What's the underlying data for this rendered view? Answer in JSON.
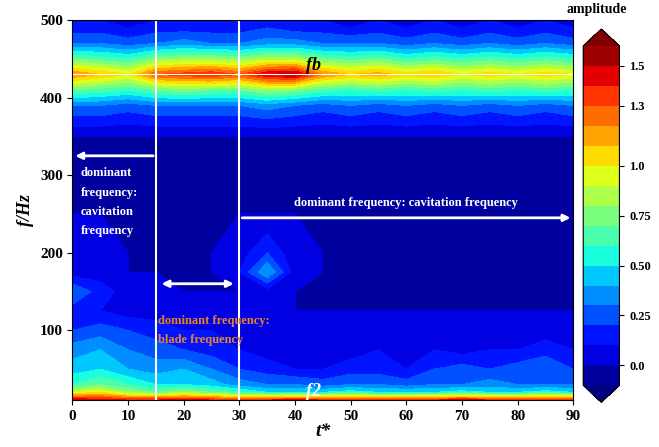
{
  "chart_data": {
    "type": "contour",
    "xlabel": "t*",
    "ylabel": "f/Hz",
    "xlim": [
      0,
      90
    ],
    "ylim": [
      10,
      500
    ],
    "xticks": [
      0,
      10,
      20,
      30,
      40,
      50,
      60,
      70,
      80,
      90
    ],
    "yticks": [
      100,
      200,
      300,
      400,
      500
    ],
    "x": [
      0,
      5,
      10,
      15,
      20,
      25,
      30,
      35,
      40,
      45,
      50,
      55,
      60,
      65,
      70,
      75,
      80,
      85,
      90
    ],
    "y": [
      10,
      20,
      30,
      50,
      75,
      100,
      125,
      150,
      175,
      200,
      250,
      300,
      350,
      390,
      410,
      430,
      450,
      470,
      490,
      500
    ],
    "cells": [
      [
        1.5,
        1.45,
        1.4,
        1.4,
        1.45,
        1.4,
        1.35,
        1.4,
        1.45,
        1.4,
        1.4,
        1.35,
        1.4,
        1.4,
        1.45,
        1.4,
        1.4,
        1.35,
        1.4
      ],
      [
        0.9,
        1.0,
        0.8,
        0.7,
        0.8,
        0.7,
        0.6,
        0.5,
        0.5,
        0.5,
        0.55,
        0.5,
        0.5,
        0.5,
        0.55,
        0.5,
        0.5,
        0.55,
        0.5
      ],
      [
        0.6,
        0.7,
        0.6,
        0.5,
        0.5,
        0.45,
        0.35,
        0.3,
        0.3,
        0.25,
        0.3,
        0.3,
        0.25,
        0.3,
        0.3,
        0.35,
        0.3,
        0.3,
        0.3
      ],
      [
        0.45,
        0.5,
        0.4,
        0.35,
        0.4,
        0.3,
        0.2,
        0.15,
        0.1,
        0.1,
        0.15,
        0.15,
        0.1,
        0.2,
        0.25,
        0.2,
        0.25,
        0.3,
        0.2
      ],
      [
        0.35,
        0.4,
        0.3,
        0.25,
        0.2,
        0.15,
        0.1,
        0.05,
        0.05,
        0.05,
        0.05,
        0.1,
        0.05,
        0.1,
        0.05,
        0.1,
        0.1,
        0.15,
        0.1
      ],
      [
        0.2,
        0.25,
        0.2,
        0.15,
        0.1,
        0.1,
        0.05,
        0.02,
        0.02,
        0.02,
        0.02,
        0.05,
        0.02,
        0.05,
        0.02,
        0.05,
        0.05,
        0.05,
        0.02
      ],
      [
        0.15,
        0.1,
        0.05,
        0.05,
        0.02,
        0.02,
        0.02,
        0.02,
        0.0,
        0.0,
        0.0,
        0.0,
        0.0,
        0.0,
        0.0,
        0.0,
        0.0,
        0.0,
        0.0
      ],
      [
        0.3,
        0.15,
        0.05,
        0.02,
        0.0,
        0.0,
        0.0,
        0.05,
        0.0,
        0.0,
        0.0,
        0.0,
        0.0,
        0.0,
        0.0,
        0.0,
        0.0,
        0.0,
        0.0
      ],
      [
        0.05,
        0.05,
        0.0,
        0.0,
        0.0,
        0.0,
        0.1,
        0.4,
        0.05,
        0.0,
        0.0,
        0.0,
        0.0,
        0.0,
        0.0,
        0.0,
        0.0,
        0.0,
        0.0
      ],
      [
        0.02,
        0.02,
        0.0,
        0.0,
        0.0,
        0.0,
        0.05,
        0.2,
        0.02,
        0.0,
        0.0,
        0.0,
        0.0,
        0.0,
        0.0,
        0.0,
        0.0,
        0.0,
        0.0
      ],
      [
        0.0,
        0.0,
        0.0,
        0.0,
        0.0,
        0.0,
        0.0,
        0.0,
        0.0,
        0.0,
        0.0,
        0.0,
        0.0,
        0.0,
        0.0,
        0.0,
        0.0,
        0.0,
        0.0
      ],
      [
        0.0,
        0.0,
        0.0,
        0.0,
        0.0,
        0.0,
        0.0,
        0.0,
        0.0,
        0.0,
        0.0,
        0.0,
        0.0,
        0.0,
        0.0,
        0.0,
        0.0,
        0.0,
        0.0
      ],
      [
        0.0,
        0.0,
        0.0,
        0.0,
        0.0,
        0.0,
        0.0,
        0.0,
        0.0,
        0.0,
        0.0,
        0.0,
        0.0,
        0.0,
        0.0,
        0.0,
        0.0,
        0.0,
        0.0
      ],
      [
        0.3,
        0.3,
        0.25,
        0.3,
        0.3,
        0.3,
        0.3,
        0.35,
        0.3,
        0.25,
        0.3,
        0.25,
        0.3,
        0.25,
        0.3,
        0.25,
        0.3,
        0.25,
        0.3
      ],
      [
        0.7,
        0.65,
        0.6,
        0.7,
        0.75,
        0.7,
        0.7,
        0.8,
        0.75,
        0.65,
        0.6,
        0.65,
        0.6,
        0.65,
        0.6,
        0.65,
        0.6,
        0.65,
        0.6
      ],
      [
        1.2,
        1.1,
        1.0,
        1.3,
        1.35,
        1.4,
        1.3,
        1.5,
        1.55,
        1.2,
        1.1,
        1.15,
        1.05,
        1.1,
        1.0,
        1.05,
        1.0,
        1.05,
        1.0
      ],
      [
        0.7,
        0.65,
        0.6,
        0.75,
        0.8,
        0.8,
        0.75,
        0.85,
        0.85,
        0.7,
        0.65,
        0.7,
        0.6,
        0.65,
        0.6,
        0.65,
        0.6,
        0.65,
        0.6
      ],
      [
        0.3,
        0.3,
        0.25,
        0.3,
        0.35,
        0.3,
        0.3,
        0.35,
        0.35,
        0.3,
        0.3,
        0.3,
        0.25,
        0.3,
        0.25,
        0.3,
        0.25,
        0.3,
        0.25
      ],
      [
        0.15,
        0.15,
        0.1,
        0.15,
        0.15,
        0.15,
        0.15,
        0.2,
        0.15,
        0.15,
        0.1,
        0.15,
        0.1,
        0.15,
        0.1,
        0.15,
        0.1,
        0.15,
        0.1
      ],
      [
        0.1,
        0.1,
        0.05,
        0.1,
        0.1,
        0.1,
        0.1,
        0.1,
        0.1,
        0.1,
        0.05,
        0.1,
        0.05,
        0.1,
        0.05,
        0.1,
        0.05,
        0.1,
        0.05
      ]
    ],
    "colorbar": {
      "label": "amplitude",
      "range": [
        -0.1,
        1.6
      ],
      "ticks": [
        0.0,
        0.25,
        {
          "value": 0.5,
          "label": "0.50"
        },
        0.75,
        1.0,
        1.3,
        1.5
      ]
    },
    "boundaries": [
      15,
      30
    ],
    "regions": [
      {
        "start": 0,
        "end": 15,
        "label": "dominant\nfrequency:\ncavitation\nfrequency",
        "color": "#ffffff"
      },
      {
        "start": 15,
        "end": 30,
        "label": "dominant frequency:\nblade frequency",
        "color": "#e8822a"
      },
      {
        "start": 30,
        "end": 90,
        "label": "dominant frequency: cavitation frequency",
        "color": "#ffffff"
      }
    ],
    "marked_frequencies": [
      {
        "label": "fb",
        "value": 430
      },
      {
        "label": "f2",
        "value": 10
      }
    ]
  }
}
